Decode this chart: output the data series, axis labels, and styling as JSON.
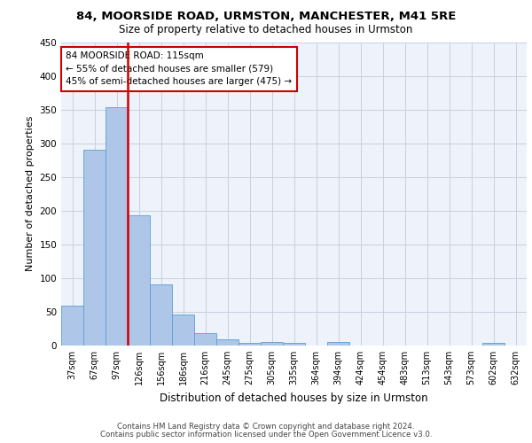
{
  "title1": "84, MOORSIDE ROAD, URMSTON, MANCHESTER, M41 5RE",
  "title2": "Size of property relative to detached houses in Urmston",
  "xlabel": "Distribution of detached houses by size in Urmston",
  "ylabel": "Number of detached properties",
  "footer1": "Contains HM Land Registry data © Crown copyright and database right 2024.",
  "footer2": "Contains public sector information licensed under the Open Government Licence v3.0.",
  "annotation_line1": "84 MOORSIDE ROAD: 115sqm",
  "annotation_line2": "← 55% of detached houses are smaller (579)",
  "annotation_line3": "45% of semi-detached houses are larger (475) →",
  "bar_color": "#aec6e8",
  "bar_edge_color": "#5a9fd4",
  "vline_color": "#cc0000",
  "annotation_box_edge_color": "#cc0000",
  "categories": [
    "37sqm",
    "67sqm",
    "97sqm",
    "126sqm",
    "156sqm",
    "186sqm",
    "216sqm",
    "245sqm",
    "275sqm",
    "305sqm",
    "335sqm",
    "364sqm",
    "394sqm",
    "424sqm",
    "454sqm",
    "483sqm",
    "513sqm",
    "543sqm",
    "573sqm",
    "602sqm",
    "632sqm"
  ],
  "values": [
    59,
    290,
    354,
    193,
    91,
    46,
    19,
    9,
    4,
    5,
    4,
    0,
    5,
    0,
    0,
    0,
    0,
    0,
    0,
    4,
    0
  ],
  "ylim": [
    0,
    450
  ],
  "yticks": [
    0,
    50,
    100,
    150,
    200,
    250,
    300,
    350,
    400,
    450
  ],
  "background_color": "#eef2fa",
  "grid_color": "#c8d0e0"
}
